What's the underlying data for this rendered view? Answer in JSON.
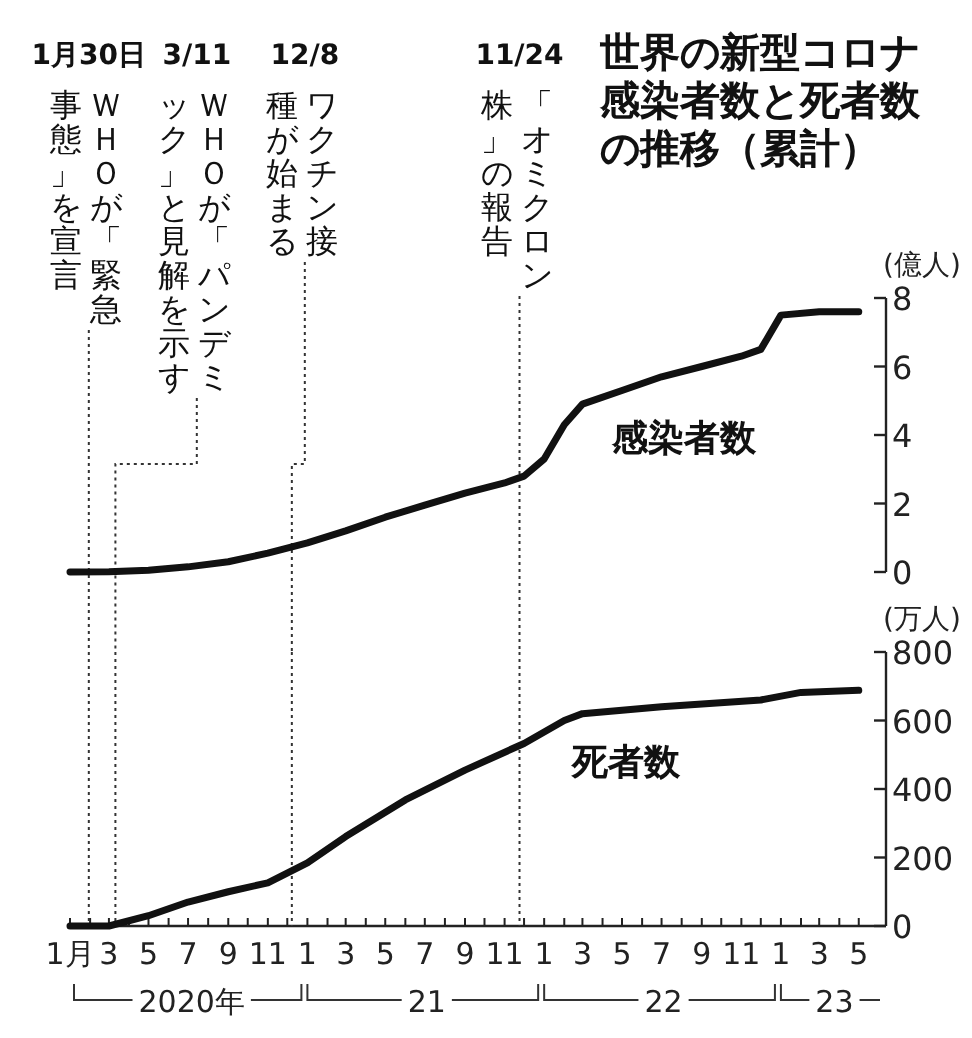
{
  "chart_data": [
    {
      "type": "line",
      "title": "世界の新型コロナ感染者数と死者数の推移（累計）",
      "ylabel": "(億人)",
      "tick_labels": "y",
      "x": [
        "2020-01",
        "2020-03",
        "2020-05",
        "2020-07",
        "2020-09",
        "2020-11",
        "2021-01",
        "2021-03",
        "2021-05",
        "2021-07",
        "2021-09",
        "2021-11",
        "2021-12",
        "2022-01",
        "2022-02",
        "2022-03",
        "2022-05",
        "2022-07",
        "2022-09",
        "2022-11",
        "2022-12",
        "2023-01",
        "2023-03",
        "2023-05"
      ],
      "series": [
        {
          "name": "感染者数",
          "color": "#111111",
          "values": [
            0,
            0.01,
            0.05,
            0.15,
            0.3,
            0.55,
            0.85,
            1.2,
            1.6,
            1.95,
            2.3,
            2.6,
            2.8,
            3.3,
            4.3,
            4.9,
            5.3,
            5.7,
            6.0,
            6.3,
            6.5,
            7.5,
            7.6,
            7.6
          ]
        }
      ],
      "xlim": [
        "2020-01-01",
        "2023-06-12"
      ],
      "ylim": [
        0,
        8
      ],
      "yticks": [
        0,
        2,
        4,
        6,
        8
      ],
      "ref_lines": [
        {
          "axis": "x",
          "value": "2020-01-30",
          "label": "ＷＨＯが「緊急事態」を宣言"
        },
        {
          "axis": "x",
          "value": "2020-03-11",
          "label": "ＷＨＯが「パンデミック」と見解を示す"
        },
        {
          "axis": "x",
          "value": "2020-12-08",
          "label": "ワクチン接種が始まる"
        },
        {
          "axis": "x",
          "value": "2021-11-24",
          "label": "「オミクロン株」の報告"
        }
      ],
      "annotations": [
        "1月30日",
        "3/11",
        "12/8",
        "11/24"
      ]
    },
    {
      "type": "line",
      "ylabel": "(万人)",
      "x": [
        "2020-01",
        "2020-03",
        "2020-05",
        "2020-07",
        "2020-09",
        "2020-11",
        "2021-01",
        "2021-03",
        "2021-06",
        "2021-09",
        "2021-12",
        "2022-02",
        "2022-03",
        "2022-07",
        "2022-12",
        "2023-02",
        "2023-05"
      ],
      "series": [
        {
          "name": "死者数",
          "color": "#111111",
          "values": [
            0,
            0,
            30,
            70,
            100,
            126,
            184,
            261,
            368,
            455,
            533,
            600,
            620,
            640,
            660,
            682,
            688
          ]
        }
      ],
      "xlim": [
        "2020-01-01",
        "2023-06-12"
      ],
      "ylim": [
        0,
        800
      ],
      "yticks": [
        0,
        200,
        400,
        600,
        800
      ],
      "xticks": [
        {
          "value": "2020-01",
          "label": "1月"
        },
        {
          "value": "2020-02",
          "label": null
        },
        {
          "value": "2020-03",
          "label": "3"
        },
        {
          "value": "2020-04",
          "label": null
        },
        {
          "value": "2020-05",
          "label": "5"
        },
        {
          "value": "2020-06",
          "label": null
        },
        {
          "value": "2020-07",
          "label": "7"
        },
        {
          "value": "2020-08",
          "label": null
        },
        {
          "value": "2020-09",
          "label": "9"
        },
        {
          "value": "2020-10",
          "label": null
        },
        {
          "value": "2020-11",
          "label": "11"
        },
        {
          "value": "2020-12",
          "label": null
        },
        {
          "value": "2021-01",
          "label": "1"
        },
        {
          "value": "2021-02",
          "label": null
        },
        {
          "value": "2021-03",
          "label": "3"
        },
        {
          "value": "2021-04",
          "label": null
        },
        {
          "value": "2021-05",
          "label": "5"
        },
        {
          "value": "2021-06",
          "label": null
        },
        {
          "value": "2021-07",
          "label": "7"
        },
        {
          "value": "2021-08",
          "label": null
        },
        {
          "value": "2021-09",
          "label": "9"
        },
        {
          "value": "2021-10",
          "label": null
        },
        {
          "value": "2021-11",
          "label": "11"
        },
        {
          "value": "2021-12",
          "label": null
        },
        {
          "value": "2022-01",
          "label": "1"
        },
        {
          "value": "2022-02",
          "label": null
        },
        {
          "value": "2022-03",
          "label": "3"
        },
        {
          "value": "2022-04",
          "label": null
        },
        {
          "value": "2022-05",
          "label": "5"
        },
        {
          "value": "2022-06",
          "label": null
        },
        {
          "value": "2022-07",
          "label": "7"
        },
        {
          "value": "2022-08",
          "label": null
        },
        {
          "value": "2022-09",
          "label": "9"
        },
        {
          "value": "2022-10",
          "label": null
        },
        {
          "value": "2022-11",
          "label": "11"
        },
        {
          "value": "2022-12",
          "label": null
        },
        {
          "value": "2023-01",
          "label": "1"
        },
        {
          "value": "2023-02",
          "label": null
        },
        {
          "value": "2023-03",
          "label": "3"
        },
        {
          "value": "2023-04",
          "label": null
        },
        {
          "value": "2023-05",
          "label": "5"
        }
      ],
      "ref_lines": [
        {
          "axis": "x",
          "value": "2020-01-30"
        },
        {
          "axis": "x",
          "value": "2020-03-11"
        },
        {
          "axis": "x",
          "value": "2020-12-08"
        },
        {
          "axis": "x",
          "value": "2021-11-24"
        }
      ],
      "annotations": [
        "2020年",
        "21",
        "22",
        "23"
      ]
    }
  ]
}
